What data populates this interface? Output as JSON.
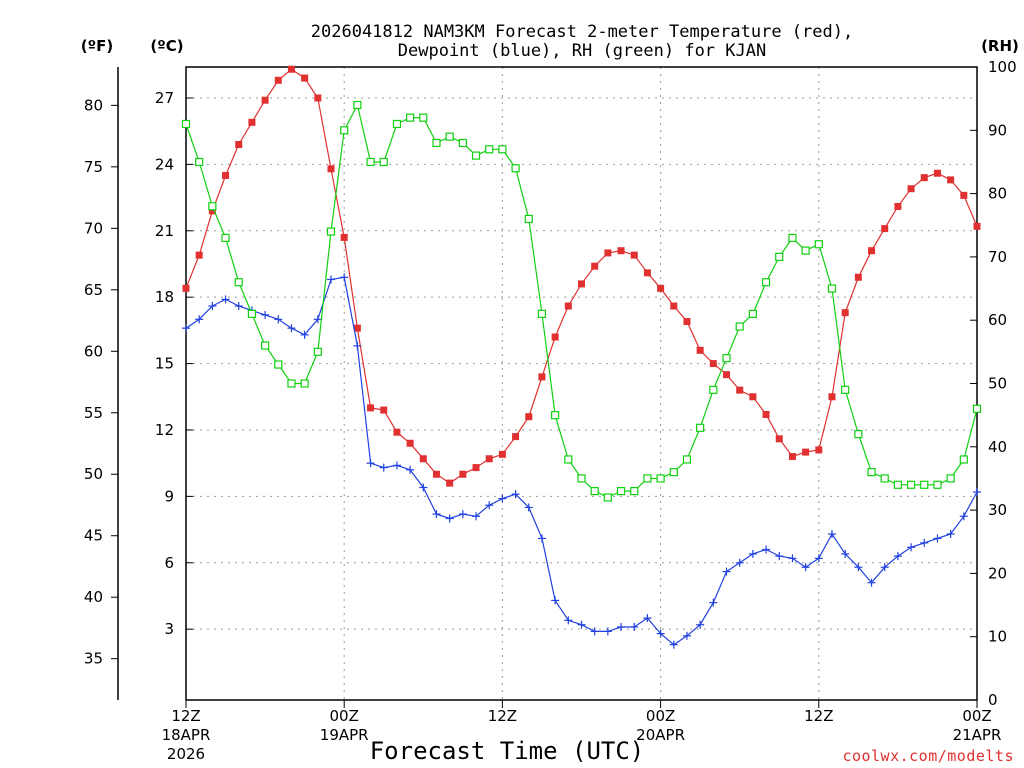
{
  "chart_data": {
    "type": "line",
    "title_line1": "2026041812 NAM3KM Forecast 2-meter Temperature (red),",
    "title_line2": "Dewpoint (blue), RH (green) for KJAN",
    "xlabel": "Forecast Time (UTC)",
    "credit": "coolwx.com/modelts",
    "units": {
      "fahrenheit": "(ºF)",
      "celsius": "(ºC)",
      "rh": "(RH)"
    },
    "y_celsius": {
      "range": [
        -0.2,
        28.4
      ],
      "ticks": [
        "3",
        "6",
        "9",
        "12",
        "15",
        "18",
        "21",
        "24",
        "27"
      ]
    },
    "y_fahrenheit": {
      "ticks": [
        "35",
        "40",
        "45",
        "50",
        "55",
        "60",
        "65",
        "70",
        "75",
        "80"
      ]
    },
    "y_rh": {
      "range": [
        0,
        100
      ],
      "ticks": [
        "0",
        "10",
        "20",
        "30",
        "40",
        "50",
        "60",
        "70",
        "80",
        "90",
        "100"
      ]
    },
    "x_range_hours": [
      0,
      60
    ],
    "x_ticks": [
      {
        "hour": 0,
        "l1": "12Z",
        "l2": "18APR",
        "l3": "2026"
      },
      {
        "hour": 12,
        "l1": "00Z",
        "l2": "19APR",
        "l3": ""
      },
      {
        "hour": 24,
        "l1": "12Z",
        "l2": "",
        "l3": ""
      },
      {
        "hour": 36,
        "l1": "00Z",
        "l2": "20APR",
        "l3": ""
      },
      {
        "hour": 48,
        "l1": "12Z",
        "l2": "",
        "l3": ""
      },
      {
        "hour": 60,
        "l1": "00Z",
        "l2": "21APR",
        "l3": ""
      }
    ],
    "series": [
      {
        "name": "Temperature",
        "color": "#e03030",
        "marker": "filled-square",
        "axis": "celsius",
        "values": [
          18.4,
          19.9,
          21.9,
          23.5,
          24.9,
          25.9,
          26.9,
          27.8,
          28.3,
          27.9,
          27.0,
          23.8,
          20.7,
          16.6,
          13.0,
          12.9,
          11.9,
          11.4,
          10.7,
          10.0,
          9.6,
          10.0,
          10.3,
          10.7,
          10.9,
          11.7,
          12.6,
          14.4,
          16.2,
          17.6,
          18.6,
          19.4,
          20.0,
          20.1,
          19.9,
          19.1,
          18.4,
          17.6,
          16.9,
          15.6,
          15.0,
          14.5,
          13.8,
          13.5,
          12.7,
          11.6,
          10.8,
          11.0,
          11.1,
          13.5,
          17.3,
          18.9,
          20.1,
          21.1,
          22.1,
          22.9,
          23.4,
          23.6,
          23.3,
          22.6,
          21.2
        ]
      },
      {
        "name": "Dewpoint",
        "color": "#2040e0",
        "marker": "plus",
        "axis": "celsius",
        "values": [
          16.6,
          17.0,
          17.6,
          17.9,
          17.6,
          17.4,
          17.2,
          17.0,
          16.6,
          16.3,
          17.0,
          18.8,
          18.9,
          15.8,
          10.5,
          10.3,
          10.4,
          10.2,
          9.4,
          8.2,
          8.0,
          8.2,
          8.1,
          8.6,
          8.9,
          9.1,
          8.5,
          7.1,
          4.3,
          3.4,
          3.2,
          2.9,
          2.9,
          3.1,
          3.1,
          3.5,
          2.8,
          2.3,
          2.7,
          3.2,
          4.2,
          5.6,
          6.0,
          6.4,
          6.6,
          6.3,
          6.2,
          5.8,
          6.2,
          7.3,
          6.4,
          5.8,
          5.1,
          5.8,
          6.3,
          6.7,
          6.9,
          7.1,
          7.3,
          8.1,
          9.2
        ]
      },
      {
        "name": "RH",
        "color": "#10d010",
        "marker": "open-square",
        "axis": "rh",
        "values": [
          91,
          85,
          78,
          73,
          66,
          61,
          56,
          53,
          50,
          50,
          55,
          74,
          90,
          94,
          85,
          85,
          91,
          92,
          92,
          88,
          89,
          88,
          86,
          87,
          87,
          84,
          76,
          61,
          45,
          38,
          35,
          33,
          32,
          33,
          33,
          35,
          35,
          36,
          38,
          43,
          49,
          54,
          59,
          61,
          66,
          70,
          73,
          71,
          72,
          65,
          49,
          42,
          36,
          35,
          34,
          34,
          34,
          34,
          35,
          38,
          46
        ]
      }
    ]
  }
}
